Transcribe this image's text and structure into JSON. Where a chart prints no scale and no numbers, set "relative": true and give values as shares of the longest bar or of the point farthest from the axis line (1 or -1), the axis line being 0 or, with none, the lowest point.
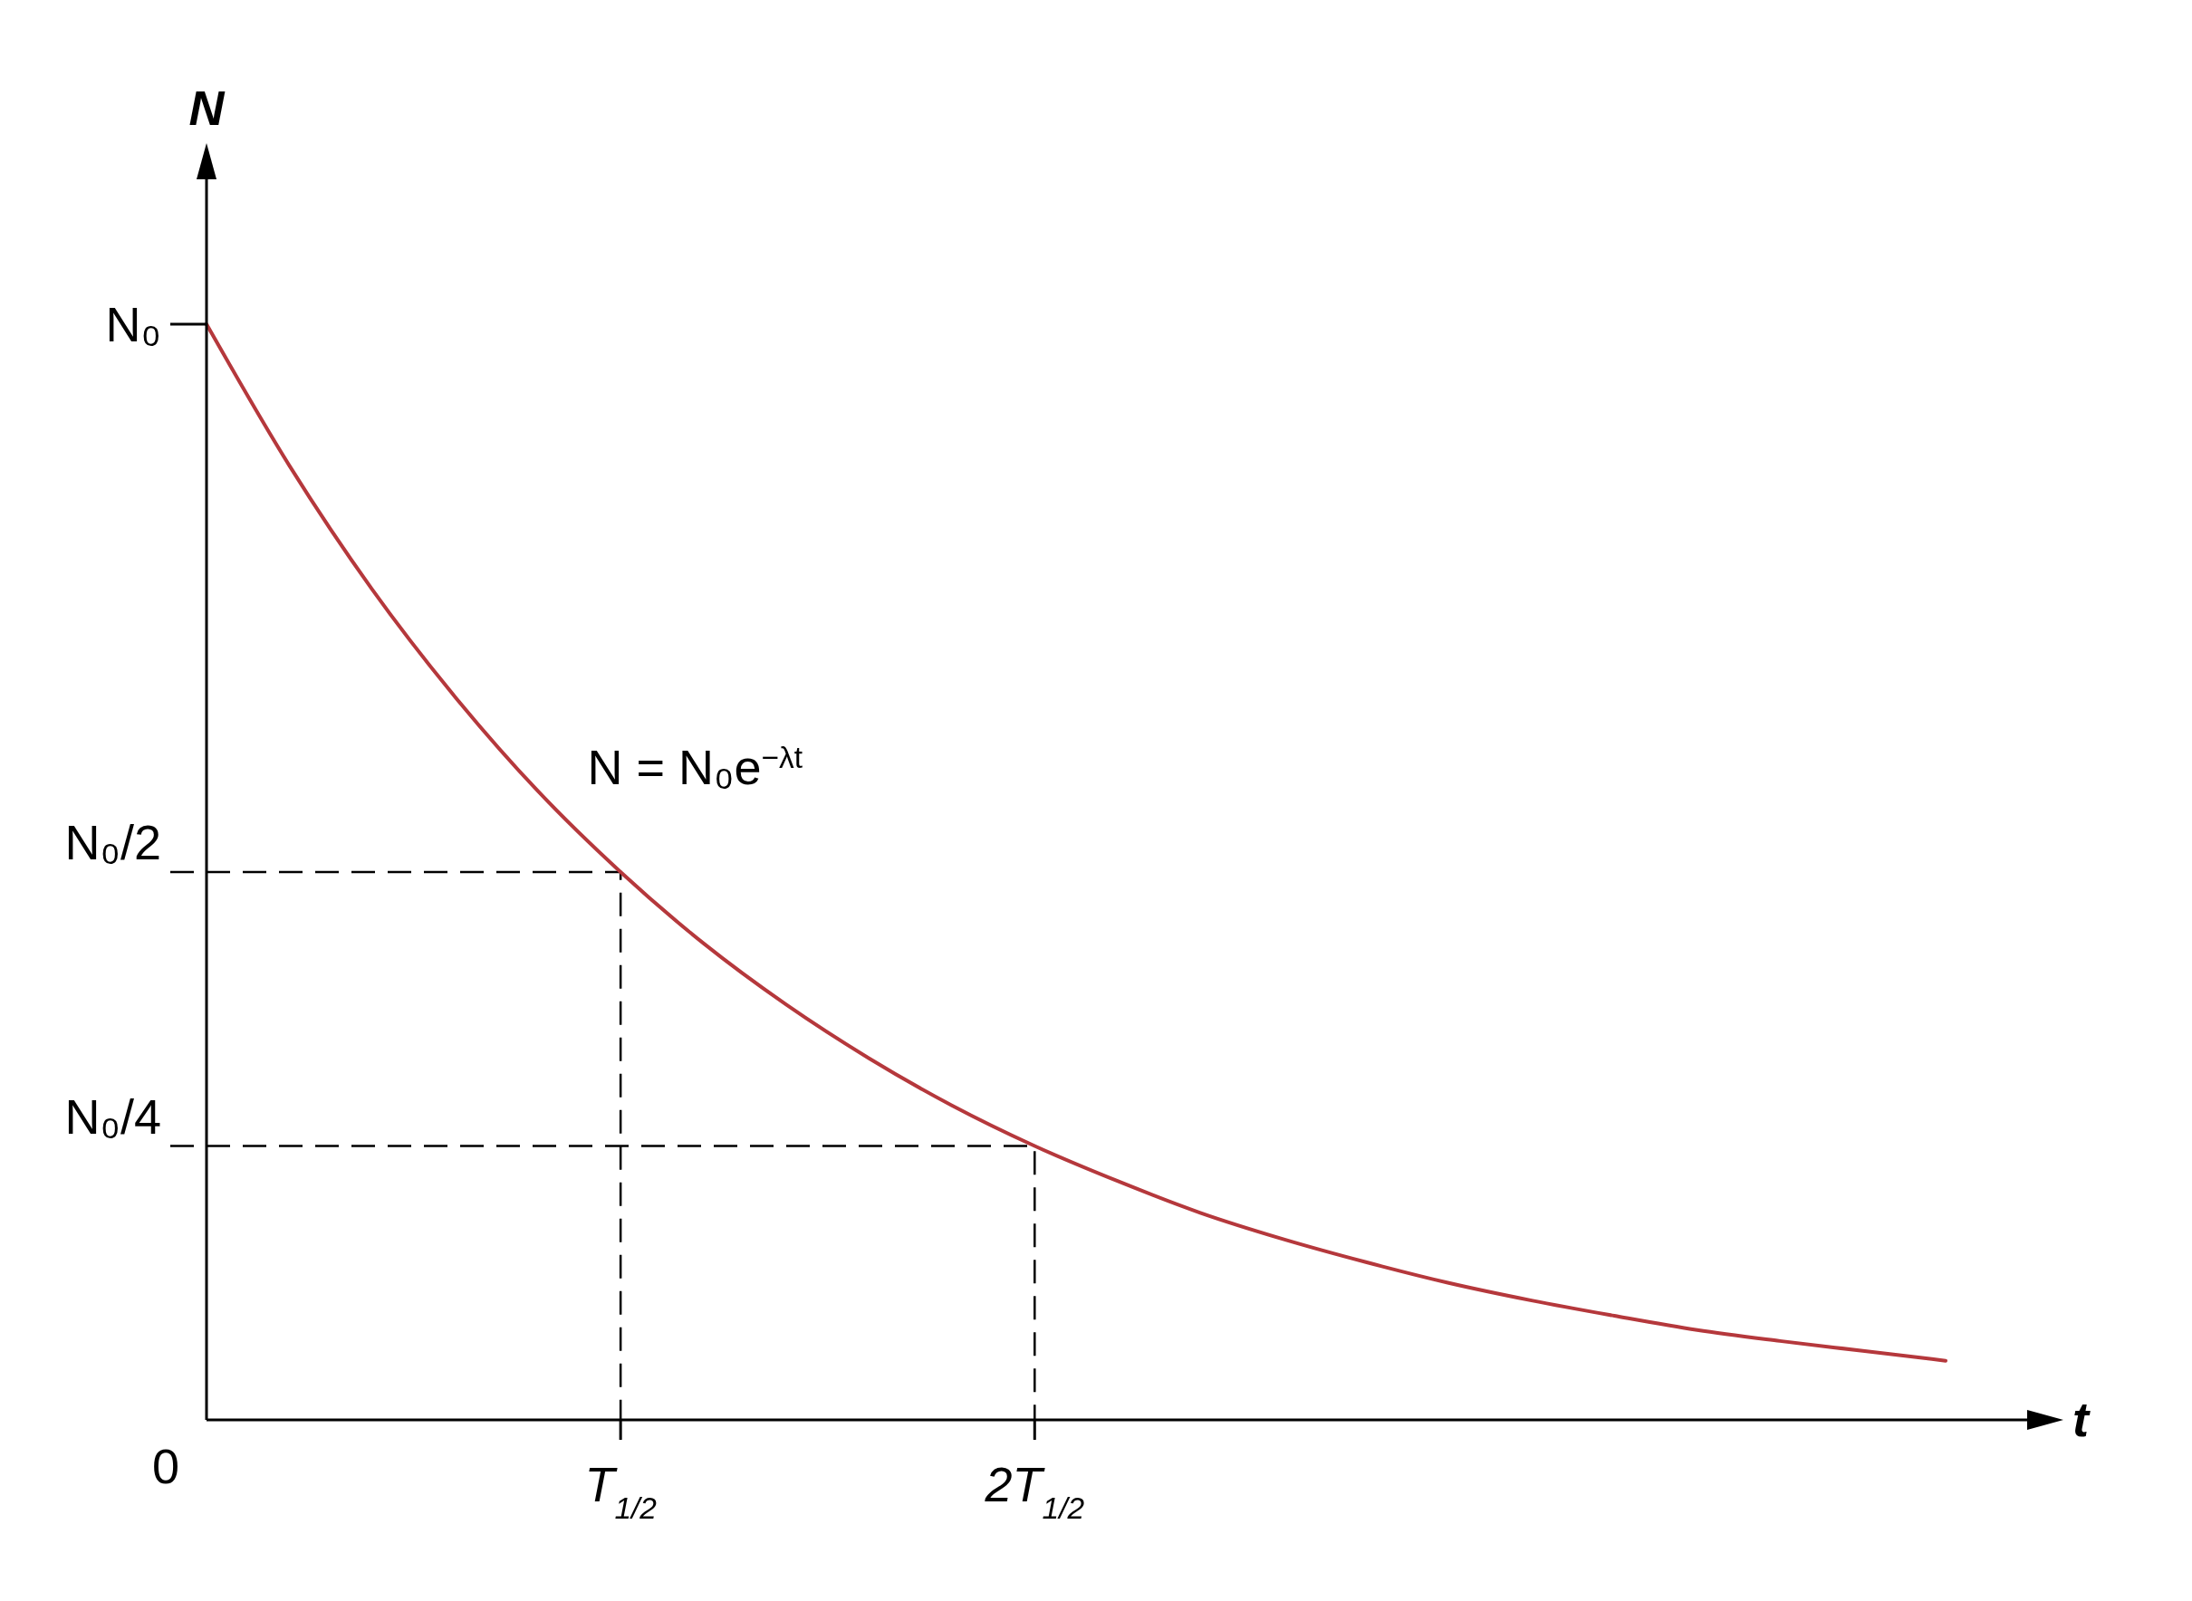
{
  "chart_data": {
    "type": "line",
    "xlabel": "t",
    "ylabel": "N",
    "relative": true,
    "categories": [
      null,
      null,
      null,
      null,
      null,
      null,
      null,
      null,
      null,
      null,
      null,
      null,
      null,
      null,
      null,
      null,
      null,
      null,
      null,
      null,
      null,
      null
    ],
    "series": [
      {
        "color": "#b5383c",
        "values": [
          1,
          0.871,
          0.758,
          0.66,
          0.574,
          0.5,
          0.435,
          0.379,
          0.33,
          0.287,
          0.25,
          0.218,
          0.189,
          0.165,
          0.144,
          0.125,
          0.109,
          0.095,
          0.082,
          0.072,
          0.063,
          0.054
        ]
      }
    ],
    "ref_lines": [
      {
        "axis": "y",
        "value": 0.5,
        "label": "N₀/2",
        "line_style": "dashed"
      },
      {
        "axis": "y",
        "value": 0.25,
        "label": "N₀/4",
        "line_style": "dashed"
      }
    ],
    "annotations": [
      "N₀",
      "0",
      "T$_{1/2}$",
      "2T$_{1/2}$",
      "N = N₀e$^{−λt}$"
    ]
  }
}
